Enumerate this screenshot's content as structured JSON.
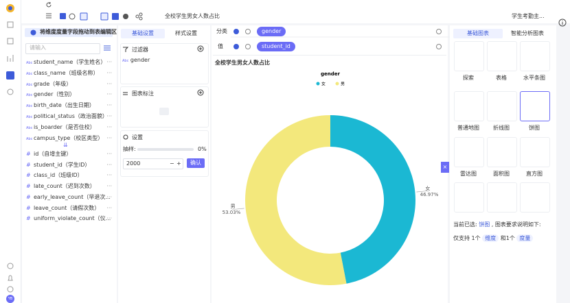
{
  "toolbar": {
    "dataset": "学生考勤主..."
  },
  "nav": {
    "avatar": "YB"
  },
  "fields": {
    "banner": "将维度度量字段拖动到表编辑区",
    "search_placeholder": "请输入",
    "dimension_badge": "Abc",
    "measure_badge": "#",
    "dimensions": [
      "student_name（学生姓名）",
      "class_name（班级名称）",
      "grade（年级）",
      "gender（性别）",
      "birth_date（出生日期）",
      "political_status（政治面貌）",
      "is_boarder（是否住校）",
      "campus_type（校区类型）"
    ],
    "measures": [
      "id（自增主键）",
      "student_id（学生ID）",
      "class_id（班级ID）",
      "late_count（迟到次数）",
      "early_leave_count（早退次...",
      "leave_count（请假次数）",
      "uniform_violate_count（仪..."
    ]
  },
  "settings": {
    "tabs": [
      "基础设置",
      "样式设置"
    ],
    "filter_title": "过滤器",
    "filter_item": "gender",
    "annotation_title": "图表标注",
    "settings_title": "设置",
    "sample_label": "抽样:",
    "sample_value": "0%",
    "input_value": "2000",
    "stepper": [
      "−",
      "+"
    ],
    "confirm": "确认"
  },
  "encoding": {
    "category_label": "分类",
    "category_field": "gender",
    "value_label": "值",
    "value_field": "student_id"
  },
  "chart_types": {
    "tabs": [
      "基础图表",
      "智能分析图表"
    ],
    "names": [
      "探索",
      "表格",
      "水平条图",
      "普通地图",
      "折线图",
      "饼图",
      "雷达图",
      "面积图",
      "直方图"
    ],
    "selected_prefix": "当前已选:",
    "selected": "饼图",
    "selected_suffix": ", 图表要求说明如下:",
    "req_1": "仅支持 1个",
    "req_dim": "维度",
    "req_2": "和1个",
    "req_measure": "度量"
  },
  "chart_data": {
    "type": "pie",
    "title": "全校学生男女人数占比",
    "legend_title": "gender",
    "categories": [
      "女",
      "男"
    ],
    "values": [
      46.97,
      53.03
    ],
    "value_labels": [
      "46.97%",
      "53.03%"
    ],
    "colors": [
      "#1bb8d3",
      "#f3e87c"
    ],
    "donut": true
  }
}
